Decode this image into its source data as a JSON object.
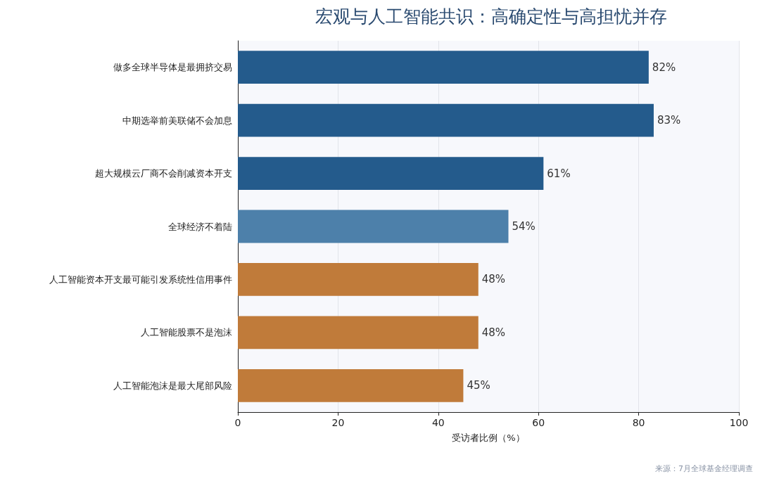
{
  "chart_data": {
    "type": "bar",
    "orientation": "horizontal",
    "title": "宏观与人工智能共识：高确定性与高担忧并存",
    "xlabel": "受访者比例（%）",
    "categories": [
      "做多全球半导体是最拥挤交易",
      "中期选举前美联储不会加息",
      "超大规模云厂商不会削减资本开支",
      "全球经济不着陆",
      "人工智能资本开支最可能引发系统性信用事件",
      "人工智能股票不是泡沫",
      "人工智能泡沫是最大尾部风险"
    ],
    "values": [
      82,
      83,
      61,
      54,
      48,
      48,
      45
    ],
    "colors": [
      "#245b8c",
      "#245b8c",
      "#245b8c",
      "#4d80aa",
      "#c07b3a",
      "#c07b3a",
      "#c07b3a"
    ],
    "value_labels": [
      "82%",
      "83%",
      "61%",
      "54%",
      "48%",
      "48%",
      "45%"
    ],
    "xlim": [
      0,
      100
    ],
    "xticks": [
      0,
      20,
      40,
      60,
      80,
      100
    ],
    "grid": "x",
    "annotations": [
      "来源：7月全球基金经理调查"
    ]
  }
}
